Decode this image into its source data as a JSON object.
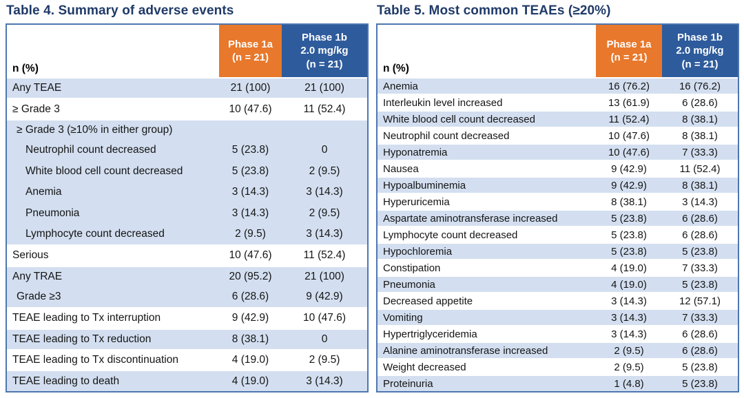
{
  "colors": {
    "title": "#1f3a68",
    "header_orange": "#e8782b",
    "header_blue": "#2e5b9c",
    "row_alt": "#d3dff0",
    "border": "#4d76b0",
    "text": "#141414",
    "header_text": "#ffffff"
  },
  "tables": [
    {
      "title": "Table 4. Summary of adverse events",
      "corner_label": "n (%)",
      "columns": [
        {
          "label": "Phase 1a\n(n = 21)",
          "color": "orange"
        },
        {
          "label": "Phase 1b\n2.0 mg/kg\n(n = 21)",
          "color": "blue"
        }
      ],
      "rows": [
        {
          "label": "Any TEAE",
          "phase1a": "21 (100)",
          "phase1b": "21 (100)",
          "indent": 0,
          "bg": "alt",
          "sep": true
        },
        {
          "label": "≥ Grade 3",
          "phase1a": "10 (47.6)",
          "phase1b": "11 (52.4)",
          "indent": 0,
          "bg": "white",
          "sep": true
        },
        {
          "label": "≥ Grade 3 (≥10% in either group)",
          "phase1a": "",
          "phase1b": "",
          "indent": 1,
          "bg": "alt",
          "sep": true
        },
        {
          "label": "Neutrophil count decreased",
          "phase1a": "5 (23.8)",
          "phase1b": "0",
          "indent": 2,
          "bg": "alt",
          "sep": false
        },
        {
          "label": "White blood cell count decreased",
          "phase1a": "5 (23.8)",
          "phase1b": "2 (9.5)",
          "indent": 2,
          "bg": "alt",
          "sep": false
        },
        {
          "label": "Anemia",
          "phase1a": "3 (14.3)",
          "phase1b": "3 (14.3)",
          "indent": 2,
          "bg": "alt",
          "sep": false
        },
        {
          "label": "Pneumonia",
          "phase1a": "3 (14.3)",
          "phase1b": "2 (9.5)",
          "indent": 2,
          "bg": "alt",
          "sep": false
        },
        {
          "label": "Lymphocyte count decreased",
          "phase1a": "2 (9.5)",
          "phase1b": "3 (14.3)",
          "indent": 2,
          "bg": "alt",
          "sep": false
        },
        {
          "label": "Serious",
          "phase1a": "10 (47.6)",
          "phase1b": "11 (52.4)",
          "indent": 0,
          "bg": "white",
          "sep": true
        },
        {
          "label": "Any TRAE",
          "phase1a": "20 (95.2)",
          "phase1b": "21 (100)",
          "indent": 0,
          "bg": "alt",
          "sep": true
        },
        {
          "label": "Grade ≥3",
          "phase1a": "6 (28.6)",
          "phase1b": "9 (42.9)",
          "indent": 1,
          "bg": "alt",
          "sep": false
        },
        {
          "label": "TEAE leading to Tx interruption",
          "phase1a": "9 (42.9)",
          "phase1b": "10 (47.6)",
          "indent": 0,
          "bg": "white",
          "sep": true
        },
        {
          "label": "TEAE leading to Tx reduction",
          "phase1a": "8 (38.1)",
          "phase1b": "0",
          "indent": 0,
          "bg": "alt",
          "sep": true
        },
        {
          "label": "TEAE leading to Tx discontinuation",
          "phase1a": "4 (19.0)",
          "phase1b": "2 (9.5)",
          "indent": 0,
          "bg": "white",
          "sep": true
        },
        {
          "label": "TEAE leading to death",
          "phase1a": "4 (19.0)",
          "phase1b": "3 (14.3)",
          "indent": 0,
          "bg": "alt",
          "sep": true
        }
      ]
    },
    {
      "title": "Table 5. Most common TEAEs (≥20%)",
      "corner_label": "n (%)",
      "columns": [
        {
          "label": "Phase 1a\n(n = 21)",
          "color": "orange"
        },
        {
          "label": "Phase 1b\n2.0 mg/kg\n(n = 21)",
          "color": "blue"
        }
      ],
      "rows": [
        {
          "label": "Anemia",
          "phase1a": "16 (76.2)",
          "phase1b": "16 (76.2)",
          "indent": 0,
          "bg": "alt",
          "sep": true
        },
        {
          "label": "Interleukin level increased",
          "phase1a": "13 (61.9)",
          "phase1b": "6 (28.6)",
          "indent": 0,
          "bg": "white",
          "sep": true
        },
        {
          "label": "White blood cell count decreased",
          "phase1a": "11 (52.4)",
          "phase1b": "8 (38.1)",
          "indent": 0,
          "bg": "alt",
          "sep": true
        },
        {
          "label": "Neutrophil count decreased",
          "phase1a": "10 (47.6)",
          "phase1b": "8 (38.1)",
          "indent": 0,
          "bg": "white",
          "sep": true
        },
        {
          "label": "Hyponatremia",
          "phase1a": "10 (47.6)",
          "phase1b": "7 (33.3)",
          "indent": 0,
          "bg": "alt",
          "sep": true
        },
        {
          "label": "Nausea",
          "phase1a": "9 (42.9)",
          "phase1b": "11 (52.4)",
          "indent": 0,
          "bg": "white",
          "sep": true
        },
        {
          "label": "Hypoalbuminemia",
          "phase1a": "9 (42.9)",
          "phase1b": "8 (38.1)",
          "indent": 0,
          "bg": "alt",
          "sep": true
        },
        {
          "label": "Hyperuricemia",
          "phase1a": "8 (38.1)",
          "phase1b": "3 (14.3)",
          "indent": 0,
          "bg": "white",
          "sep": true
        },
        {
          "label": "Aspartate aminotransferase increased",
          "phase1a": "5 (23.8)",
          "phase1b": "6 (28.6)",
          "indent": 0,
          "bg": "alt",
          "sep": true
        },
        {
          "label": "Lymphocyte count decreased",
          "phase1a": "5 (23.8)",
          "phase1b": "6 (28.6)",
          "indent": 0,
          "bg": "white",
          "sep": true
        },
        {
          "label": "Hypochloremia",
          "phase1a": "5 (23.8)",
          "phase1b": "5 (23.8)",
          "indent": 0,
          "bg": "alt",
          "sep": true
        },
        {
          "label": "Constipation",
          "phase1a": "4 (19.0)",
          "phase1b": "7 (33.3)",
          "indent": 0,
          "bg": "white",
          "sep": true
        },
        {
          "label": "Pneumonia",
          "phase1a": "4 (19.0)",
          "phase1b": "5 (23.8)",
          "indent": 0,
          "bg": "alt",
          "sep": true
        },
        {
          "label": "Decreased appetite",
          "phase1a": "3 (14.3)",
          "phase1b": "12 (57.1)",
          "indent": 0,
          "bg": "white",
          "sep": true
        },
        {
          "label": "Vomiting",
          "phase1a": "3 (14.3)",
          "phase1b": "7 (33.3)",
          "indent": 0,
          "bg": "alt",
          "sep": true
        },
        {
          "label": "Hypertriglyceridemia",
          "phase1a": "3 (14.3)",
          "phase1b": "6 (28.6)",
          "indent": 0,
          "bg": "white",
          "sep": true
        },
        {
          "label": "Alanine aminotransferase increased",
          "phase1a": "2 (9.5)",
          "phase1b": "6 (28.6)",
          "indent": 0,
          "bg": "alt",
          "sep": true
        },
        {
          "label": "Weight decreased",
          "phase1a": "2 (9.5)",
          "phase1b": "5 (23.8)",
          "indent": 0,
          "bg": "white",
          "sep": true
        },
        {
          "label": "Proteinuria",
          "phase1a": "1 (4.8)",
          "phase1b": "5 (23.8)",
          "indent": 0,
          "bg": "alt",
          "sep": true
        }
      ]
    }
  ]
}
